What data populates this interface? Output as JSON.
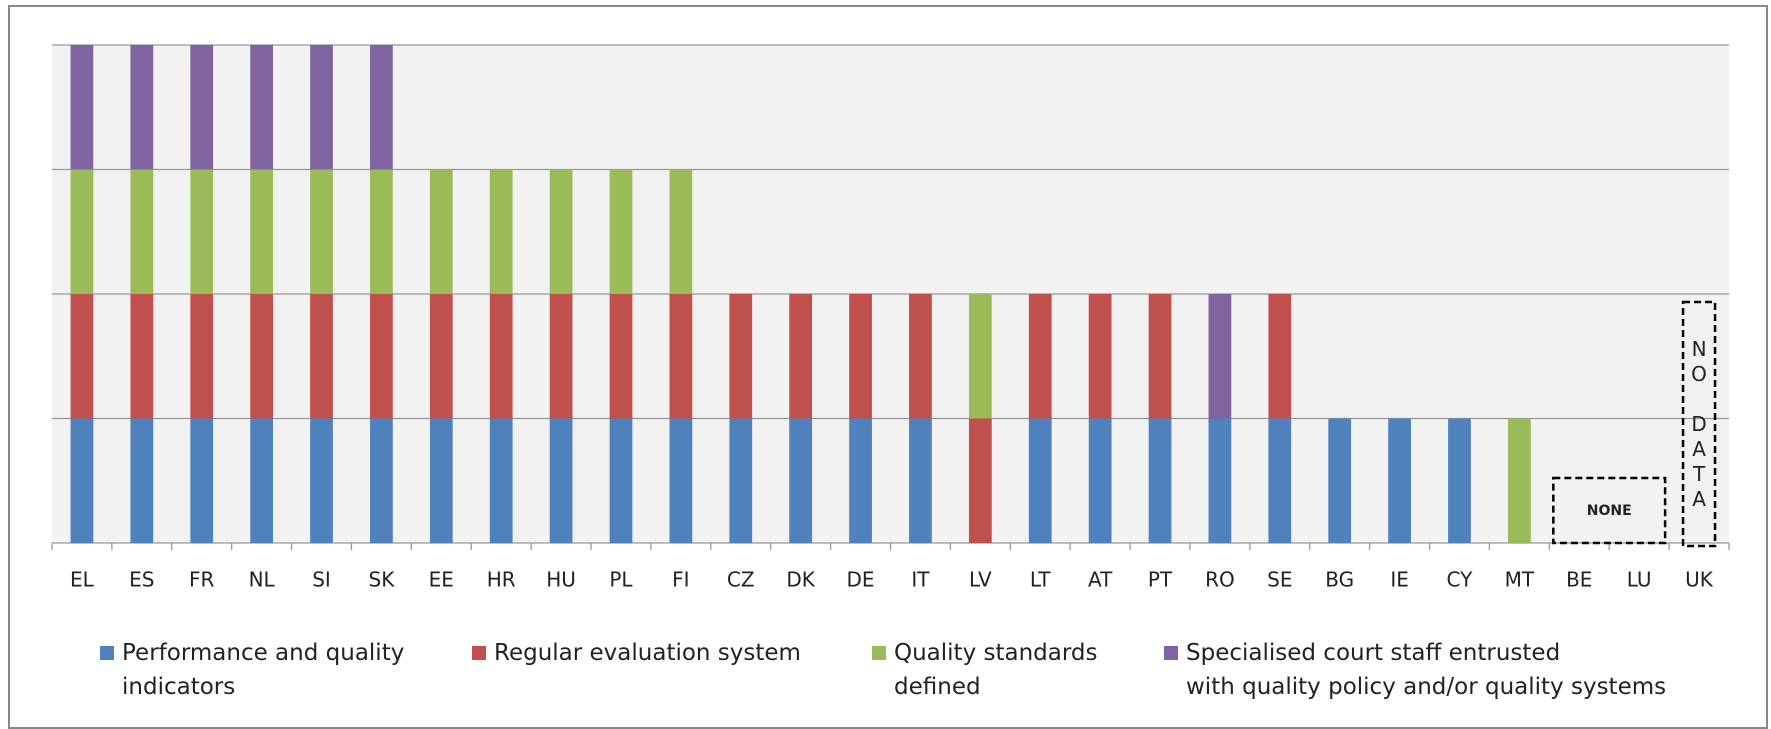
{
  "chart_data": {
    "type": "stacked_bar",
    "categories": [
      "EL",
      "ES",
      "FR",
      "NL",
      "SI",
      "SK",
      "EE",
      "HR",
      "HU",
      "PL",
      "FI",
      "CZ",
      "DK",
      "DE",
      "IT",
      "LV",
      "LT",
      "AT",
      "PT",
      "RO",
      "SE",
      "BG",
      "IE",
      "CY",
      "MT",
      "BE",
      "LU",
      "UK"
    ],
    "series": [
      {
        "name": "Performance and quality\nindicators",
        "color": "#4f81bd",
        "values": [
          1,
          1,
          1,
          1,
          1,
          1,
          1,
          1,
          1,
          1,
          1,
          1,
          1,
          1,
          1,
          0,
          1,
          1,
          1,
          1,
          1,
          1,
          1,
          1,
          0,
          0,
          0,
          null
        ]
      },
      {
        "name": "Regular evaluation system",
        "color": "#c0504d",
        "values": [
          1,
          1,
          1,
          1,
          1,
          1,
          1,
          1,
          1,
          1,
          1,
          1,
          1,
          1,
          1,
          1,
          1,
          1,
          1,
          0,
          1,
          0,
          0,
          0,
          0,
          0,
          0,
          null
        ]
      },
      {
        "name": "Quality standards\ndefined",
        "color": "#9bbb59",
        "values": [
          1,
          1,
          1,
          1,
          1,
          1,
          1,
          1,
          1,
          1,
          1,
          0,
          0,
          0,
          0,
          1,
          0,
          0,
          0,
          0,
          0,
          0,
          0,
          0,
          1,
          0,
          0,
          null
        ]
      },
      {
        "name": "Specialised court staff entrusted\nwith quality policy and/or quality systems",
        "color": "#8064a2",
        "values": [
          1,
          1,
          1,
          1,
          1,
          1,
          0,
          0,
          0,
          0,
          0,
          0,
          0,
          0,
          0,
          0,
          0,
          0,
          0,
          1,
          0,
          0,
          0,
          0,
          0,
          0,
          0,
          null
        ]
      }
    ],
    "ylim": [
      0,
      4
    ],
    "yticks": [
      0,
      1,
      2,
      3,
      4
    ],
    "grid": true,
    "legend": "bottom",
    "annotations": [
      "NONE",
      "NO DATA"
    ]
  }
}
